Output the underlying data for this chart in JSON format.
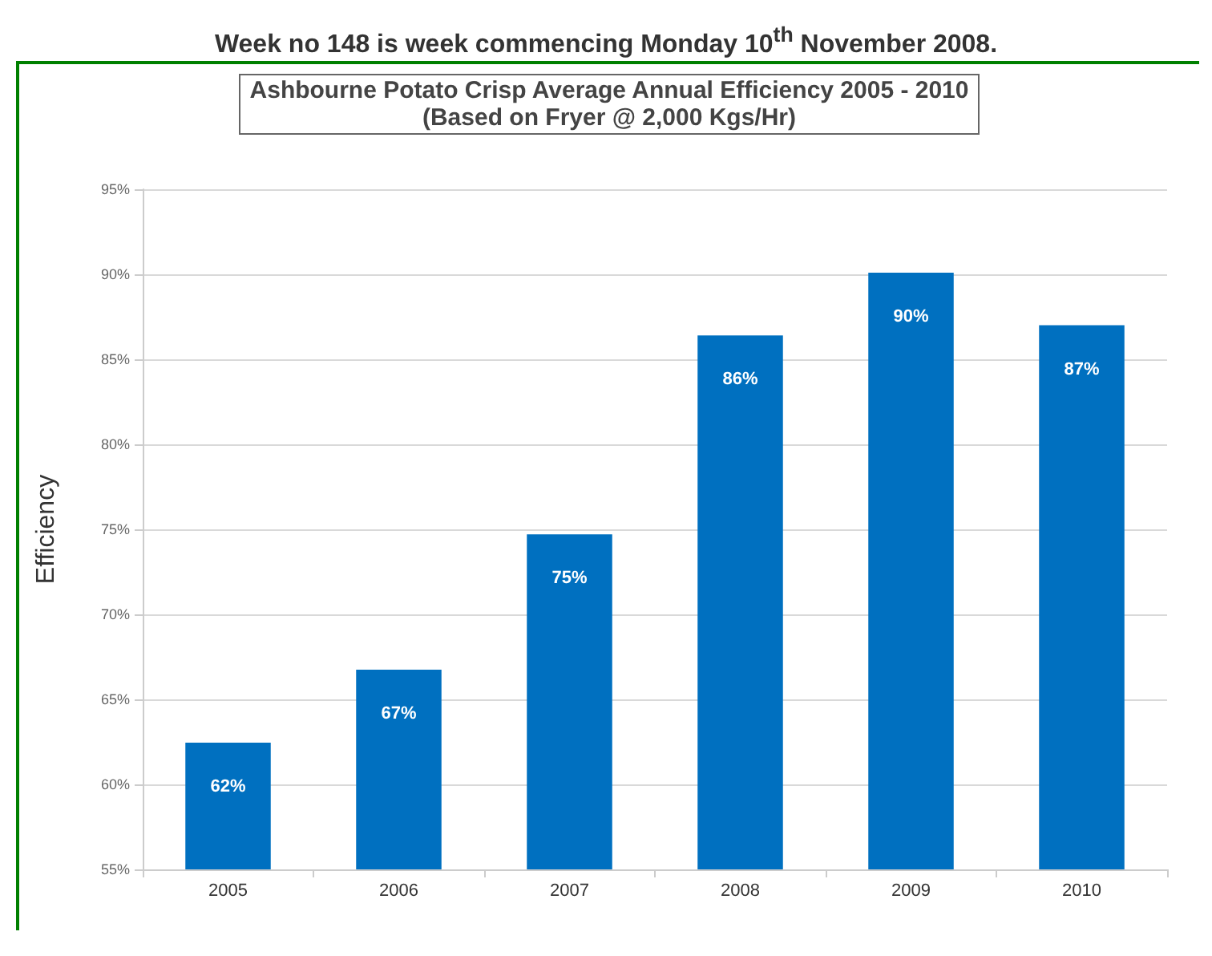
{
  "chart_data": {
    "type": "bar",
    "title": "Ashbourne Potato Crisp Average Annual Efficiency 2005 - 2010",
    "subtitle": "(Based on Fryer @ 2,000 Kgs/Hr)",
    "annotations": [
      "Week no 148 is week commencing Monday 10$^{th}$ November 2008."
    ],
    "ylabel": "Efficiency",
    "categories": [
      "2005",
      "2006",
      "2007",
      "2008",
      "2009",
      "2010"
    ],
    "values": [
      62.45,
      66.75,
      74.7,
      86.4,
      90.1,
      87.0
    ],
    "value_labels": [
      "62%",
      "67%",
      "75%",
      "86%",
      "90%",
      "87%"
    ],
    "color": "#0070c0",
    "ylim": [
      55,
      95
    ],
    "yticks": [
      {
        "value": 55,
        "label": "55%"
      },
      {
        "value": 60,
        "label": "60%"
      },
      {
        "value": 65,
        "label": "65%"
      },
      {
        "value": 70,
        "label": "70%"
      },
      {
        "value": 75,
        "label": "75%"
      },
      {
        "value": 80,
        "label": "80%"
      },
      {
        "value": 85,
        "label": "85%"
      },
      {
        "value": 90,
        "label": "90%"
      },
      {
        "value": 95,
        "label": "95%"
      }
    ],
    "grid": "y"
  }
}
